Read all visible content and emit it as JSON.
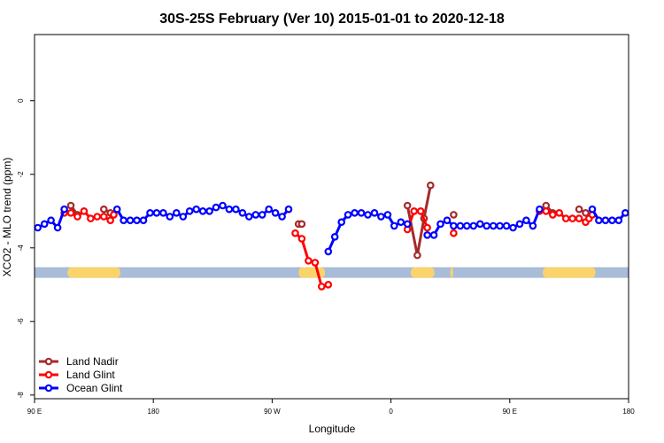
{
  "chart_data": {
    "type": "line",
    "title": "30S-25S February (Ver 10)   2015-01-01 to 2020-12-18",
    "xlabel": "Longitude",
    "ylabel": "XCO2 - MLO trend (ppm)",
    "xlim": [
      0,
      450
    ],
    "ylim": [
      -8.1,
      1.8
    ],
    "xticks": [
      {
        "value": 0,
        "label": "90 E"
      },
      {
        "value": 90,
        "label": "180"
      },
      {
        "value": 180,
        "label": "90 W"
      },
      {
        "value": 270,
        "label": "0"
      },
      {
        "value": 360,
        "label": "90 E"
      },
      {
        "value": 450,
        "label": "180"
      }
    ],
    "yticks": [
      {
        "value": 0,
        "label": "0"
      },
      {
        "value": -2,
        "label": "-2"
      },
      {
        "value": -4,
        "label": "-4"
      },
      {
        "value": -6,
        "label": "-6"
      },
      {
        "value": -8,
        "label": "-8"
      }
    ],
    "land_band": {
      "y": -4.67,
      "ocean_color": "#a9bcd8",
      "land_color": "#fad46b",
      "land_ranges": [
        [
          25,
          65
        ],
        [
          200,
          220
        ],
        [
          285,
          303
        ],
        [
          315,
          317
        ],
        [
          385,
          425
        ]
      ]
    },
    "series": [
      {
        "name": "Land Nadir",
        "color": "#a52a2a",
        "points": [
          [
            27.5,
            -2.85
          ],
          [
            32.5,
            -3.1
          ],
          [
            52.5,
            -2.95
          ],
          [
            57.5,
            -3.05
          ],
          [
            200,
            -3.35
          ],
          [
            202.5,
            -3.35
          ],
          [
            282.5,
            -2.85
          ],
          [
            290,
            -4.2
          ],
          [
            295,
            -3.2
          ],
          [
            300,
            -2.3
          ],
          [
            317.5,
            -3.1
          ],
          [
            387.5,
            -2.85
          ],
          [
            392.5,
            -3.05
          ],
          [
            412.5,
            -2.95
          ],
          [
            417.5,
            -3.05
          ]
        ]
      },
      {
        "name": "Land Glint",
        "color": "#ff0000",
        "points": [
          [
            22.5,
            -3.05
          ],
          [
            27.5,
            -3.05
          ],
          [
            32.5,
            -3.15
          ],
          [
            37.5,
            -3.0
          ],
          [
            42.5,
            -3.2
          ],
          [
            47.5,
            -3.15
          ],
          [
            52.5,
            -3.15
          ],
          [
            57.5,
            -3.25
          ],
          [
            60,
            -3.1
          ],
          [
            197.5,
            -3.6
          ],
          [
            202.5,
            -3.75
          ],
          [
            207.5,
            -4.35
          ],
          [
            212.5,
            -4.4
          ],
          [
            217.5,
            -5.05
          ],
          [
            222.5,
            -5.0
          ],
          [
            282.5,
            -3.5
          ],
          [
            287.5,
            -3.0
          ],
          [
            292.5,
            -3.0
          ],
          [
            297.5,
            -3.45
          ],
          [
            317.5,
            -3.6
          ],
          [
            382.5,
            -3.0
          ],
          [
            387.5,
            -3.0
          ],
          [
            392.5,
            -3.1
          ],
          [
            397.5,
            -3.05
          ],
          [
            402.5,
            -3.2
          ],
          [
            407.5,
            -3.2
          ],
          [
            412.5,
            -3.2
          ],
          [
            417.5,
            -3.3
          ],
          [
            420,
            -3.2
          ],
          [
            422.5,
            -3.1
          ]
        ]
      },
      {
        "name": "Ocean Glint",
        "color": "#0000ff",
        "points": [
          [
            2.5,
            -3.45
          ],
          [
            7.5,
            -3.35
          ],
          [
            12.5,
            -3.25
          ],
          [
            17.5,
            -3.45
          ],
          [
            22.5,
            -2.95
          ],
          [
            62.5,
            -2.95
          ],
          [
            67.5,
            -3.25
          ],
          [
            72.5,
            -3.25
          ],
          [
            77.5,
            -3.25
          ],
          [
            82.5,
            -3.25
          ],
          [
            87.5,
            -3.05
          ],
          [
            92.5,
            -3.05
          ],
          [
            97.5,
            -3.05
          ],
          [
            102.5,
            -3.15
          ],
          [
            107.5,
            -3.05
          ],
          [
            112.5,
            -3.15
          ],
          [
            117.5,
            -3.0
          ],
          [
            122.5,
            -2.95
          ],
          [
            127.5,
            -3.0
          ],
          [
            132.5,
            -3.0
          ],
          [
            137.5,
            -2.9
          ],
          [
            142.5,
            -2.85
          ],
          [
            147.5,
            -2.95
          ],
          [
            152.5,
            -2.95
          ],
          [
            157.5,
            -3.05
          ],
          [
            162.5,
            -3.15
          ],
          [
            167.5,
            -3.1
          ],
          [
            172.5,
            -3.1
          ],
          [
            177.5,
            -2.95
          ],
          [
            182.5,
            -3.05
          ],
          [
            187.5,
            -3.15
          ],
          [
            192.5,
            -2.95
          ],
          [
            222.5,
            -4.1
          ],
          [
            227.5,
            -3.7
          ],
          [
            232.5,
            -3.3
          ],
          [
            237.5,
            -3.1
          ],
          [
            242.5,
            -3.05
          ],
          [
            247.5,
            -3.05
          ],
          [
            252.5,
            -3.1
          ],
          [
            257.5,
            -3.05
          ],
          [
            262.5,
            -3.15
          ],
          [
            267.5,
            -3.1
          ],
          [
            272.5,
            -3.4
          ],
          [
            277.5,
            -3.3
          ],
          [
            282.5,
            -3.35
          ],
          [
            297.5,
            -3.65
          ],
          [
            302.5,
            -3.65
          ],
          [
            307.5,
            -3.35
          ],
          [
            312.5,
            -3.25
          ],
          [
            317.5,
            -3.4
          ],
          [
            322.5,
            -3.4
          ],
          [
            327.5,
            -3.4
          ],
          [
            332.5,
            -3.4
          ],
          [
            337.5,
            -3.35
          ],
          [
            342.5,
            -3.4
          ],
          [
            347.5,
            -3.4
          ],
          [
            352.5,
            -3.4
          ],
          [
            357.5,
            -3.4
          ],
          [
            362.5,
            -3.45
          ],
          [
            367.5,
            -3.35
          ],
          [
            372.5,
            -3.25
          ],
          [
            377.5,
            -3.4
          ],
          [
            382.5,
            -2.95
          ],
          [
            422.5,
            -2.95
          ],
          [
            427.5,
            -3.25
          ],
          [
            432.5,
            -3.25
          ],
          [
            437.5,
            -3.25
          ],
          [
            442.5,
            -3.25
          ],
          [
            447.5,
            -3.05
          ]
        ]
      }
    ],
    "legend": {
      "position": "bottom-left",
      "entries": [
        "Land Nadir",
        "Land Glint",
        "Ocean Glint"
      ]
    }
  }
}
